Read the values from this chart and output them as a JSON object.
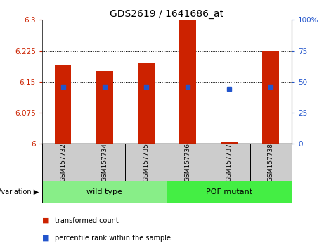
{
  "title": "GDS2619 / 1641686_at",
  "samples": [
    "GSM157732",
    "GSM157734",
    "GSM157735",
    "GSM157736",
    "GSM157737",
    "GSM157738"
  ],
  "transformed_count": [
    6.19,
    6.175,
    6.195,
    6.3,
    6.005,
    6.225
  ],
  "percentile_rank": [
    46,
    46,
    46,
    46,
    44,
    46
  ],
  "ymin": 6.0,
  "ymax": 6.3,
  "yticks": [
    6.0,
    6.075,
    6.15,
    6.225,
    6.3
  ],
  "ytick_labels": [
    "6",
    "6.075",
    "6.15",
    "6.225",
    "6.3"
  ],
  "right_yticks": [
    0,
    25,
    50,
    75,
    100
  ],
  "right_ytick_labels": [
    "0",
    "25",
    "50",
    "75",
    "100%"
  ],
  "bar_color": "#cc2200",
  "dot_color": "#2255cc",
  "groups": [
    {
      "name": "wild type",
      "indices": [
        0,
        1,
        2
      ],
      "color": "#88ee88"
    },
    {
      "name": "POF mutant",
      "indices": [
        3,
        4,
        5
      ],
      "color": "#44ee44"
    }
  ],
  "group_label": "genotype/variation",
  "legend_items": [
    {
      "label": "transformed count",
      "color": "#cc2200"
    },
    {
      "label": "percentile rank within the sample",
      "color": "#2255cc"
    }
  ],
  "tick_color": "#cc2200",
  "right_tick_color": "#2255cc",
  "bar_width": 0.4,
  "sample_box_color": "#cccccc"
}
